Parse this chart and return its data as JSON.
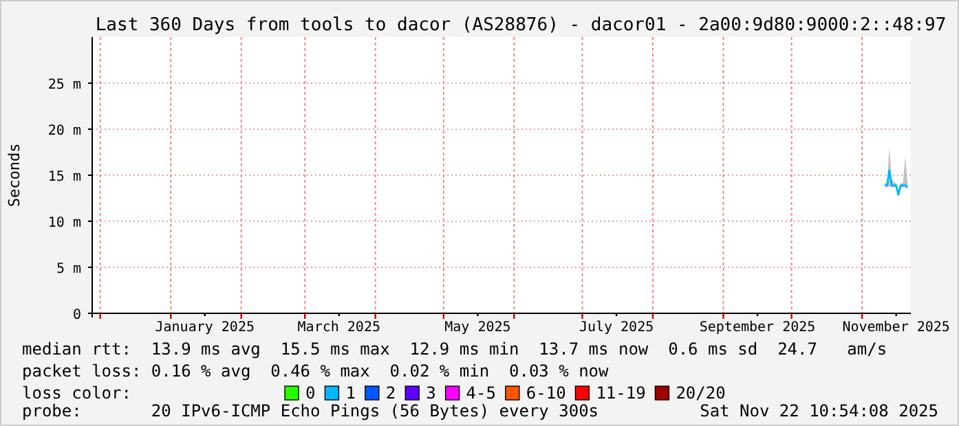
{
  "chart_data": {
    "type": "line",
    "title": "Last 360 Days from tools to dacor (AS28876) - dacor01 - 2a00:9d80:9000:2::48:97",
    "ylabel": "Seconds",
    "x": [
      "2025-11-11",
      "2025-11-12",
      "2025-11-13",
      "2025-11-14",
      "2025-11-15",
      "2025-11-16",
      "2025-11-17",
      "2025-11-18",
      "2025-11-19",
      "2025-11-20",
      "2025-11-21"
    ],
    "series": [
      {
        "color": "#00b8ff",
        "values": [
          13.9,
          13.9,
          15.5,
          13.9,
          13.9,
          13.9,
          12.9,
          13.9,
          13.9,
          13.9,
          13.7
        ],
        "lower": [
          13.7,
          13.7,
          13.8,
          13.7,
          13.7,
          13.7,
          12.7,
          13.7,
          13.7,
          13.7,
          13.5
        ],
        "upper": [
          14.1,
          14.2,
          18,
          14.6,
          14.3,
          14.1,
          13.1,
          14.1,
          14.2,
          17,
          14.1
        ]
      }
    ],
    "xlim": [
      "2024-11-27T10:54",
      "2025-11-22T10:54"
    ],
    "xticks": [
      {
        "value": "2024-12-01",
        "label": null
      },
      {
        "value": "2025-01-01",
        "label": null
      },
      {
        "value": "2025-01-16",
        "label": "January 2025"
      },
      {
        "value": "2025-02-01",
        "label": null
      },
      {
        "value": "2025-03-01",
        "label": null
      },
      {
        "value": "2025-03-16",
        "label": "March 2025"
      },
      {
        "value": "2025-04-01",
        "label": null
      },
      {
        "value": "2025-05-01",
        "label": null
      },
      {
        "value": "2025-05-16",
        "label": "May 2025"
      },
      {
        "value": "2025-06-01",
        "label": null
      },
      {
        "value": "2025-07-01",
        "label": null
      },
      {
        "value": "2025-07-16",
        "label": "July 2025"
      },
      {
        "value": "2025-08-01",
        "label": null
      },
      {
        "value": "2025-09-01",
        "label": null
      },
      {
        "value": "2025-09-16",
        "label": "September 2025"
      },
      {
        "value": "2025-10-01",
        "label": null
      },
      {
        "value": "2025-11-01",
        "label": null
      },
      {
        "value": "2025-11-16",
        "label": "November 2025"
      }
    ],
    "ylim": [
      0,
      30
    ],
    "yticks": [
      0,
      {
        "value": 5,
        "label": "5 m"
      },
      {
        "value": 10,
        "label": "10 m"
      },
      {
        "value": 15,
        "label": "15 m"
      },
      {
        "value": 20,
        "label": "20 m"
      },
      {
        "value": 25,
        "label": "25 m"
      }
    ],
    "grid": true,
    "marker": "none",
    "line_style": "solid",
    "annotations": [
      "median rtt:  13.9 ms avg  15.5 ms max  12.9 ms min  13.7 ms now  0.6 ms sd  24.7   am/s",
      "packet loss: 0.16 % avg  0.46 % max  0.02 % min  0.03 % now",
      "loss color:",
      "0",
      "1",
      "2",
      "3",
      "4-5",
      "6-10",
      "11-19",
      "20/20",
      "probe:       20 IPv6-ICMP Echo Pings (56 Bytes) every 300s",
      "Sat Nov 22 10:54:08 2025"
    ]
  }
}
